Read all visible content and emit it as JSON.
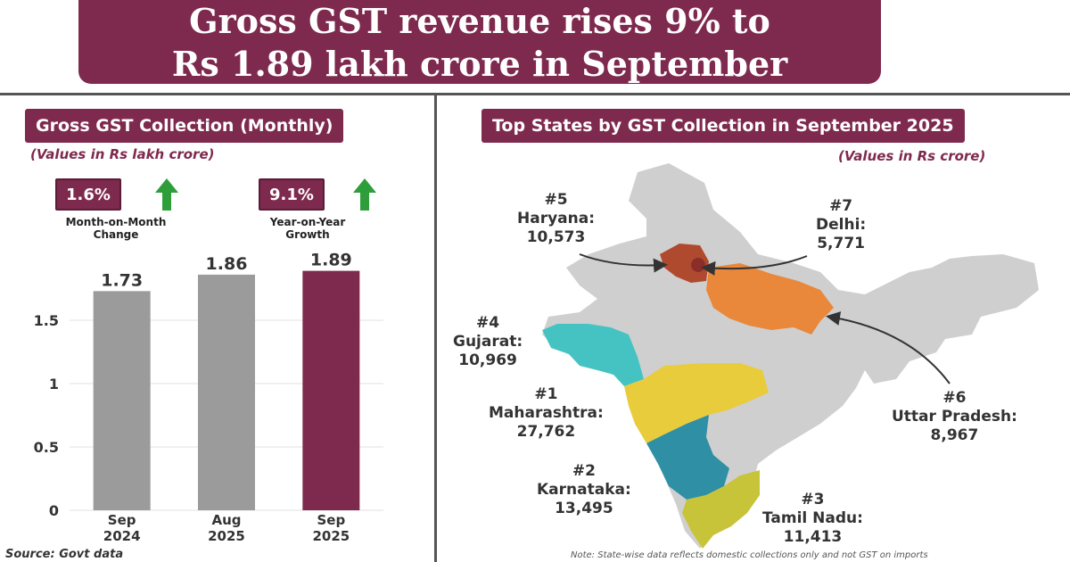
{
  "title": {
    "line1": "Gross GST revenue rises 9% to",
    "line2": "Rs 1.89 lakh crore in September"
  },
  "left_panel": {
    "title": "Gross GST Collection (Monthly)",
    "units": "(Values in Rs lakh crore)",
    "mom": {
      "value": "1.6%",
      "label_line1": "Month-on-Month",
      "label_line2": "Change",
      "icon": "up-arrow-icon"
    },
    "yoy": {
      "value": "9.1%",
      "label_line1": "Year-on-Year",
      "label_line2": "Growth",
      "icon": "up-arrow-icon"
    }
  },
  "right_panel": {
    "title": "Top States by GST Collection in September 2025",
    "units": "(Values in Rs crore)"
  },
  "states": [
    {
      "rank": "#1",
      "name": "Maharashtra:",
      "value": "27,762",
      "color": "#e8cc3c"
    },
    {
      "rank": "#2",
      "name": "Karnataka:",
      "value": "13,495",
      "color": "#2e8fa5"
    },
    {
      "rank": "#3",
      "name": "Tamil Nadu:",
      "value": "11,413",
      "color": "#c7c43a"
    },
    {
      "rank": "#4",
      "name": "Gujarat:",
      "value": "10,969",
      "color": "#45c3c2"
    },
    {
      "rank": "#5",
      "name": "Haryana:",
      "value": "10,573",
      "color": "#b04a2e"
    },
    {
      "rank": "#6",
      "name": "Uttar Pradesh:",
      "value": "8,967",
      "color": "#e9873a"
    },
    {
      "rank": "#7",
      "name": "Delhi:",
      "value": "5,771",
      "color": "#8b2e2a"
    }
  ],
  "source": "Source: Govt data",
  "note": "Note: State-wise data reflects domestic collections only and not GST on imports",
  "colors": {
    "accent": "#7e2a4e",
    "bar_gray": "#9b9b9b",
    "bar_highlight": "#7e2a4e",
    "arrow_green": "#2e9e3a",
    "map_base": "#cfcfcf"
  },
  "chart_data": {
    "type": "bar",
    "categories": [
      "Sep 2024",
      "Aug 2025",
      "Sep 2025"
    ],
    "category_lines": [
      [
        "Sep",
        "2024"
      ],
      [
        "Aug",
        "2025"
      ],
      [
        "Sep",
        "2025"
      ]
    ],
    "values": [
      1.73,
      1.86,
      1.89
    ],
    "value_labels": [
      "1.73",
      "1.86",
      "1.89"
    ],
    "highlight_index": 2,
    "yticks": [
      0,
      0.5,
      1,
      1.5
    ],
    "ytick_labels": [
      "0",
      "0.5",
      "1",
      "1.5"
    ],
    "ylim": [
      0,
      2.0
    ],
    "grid": true
  }
}
